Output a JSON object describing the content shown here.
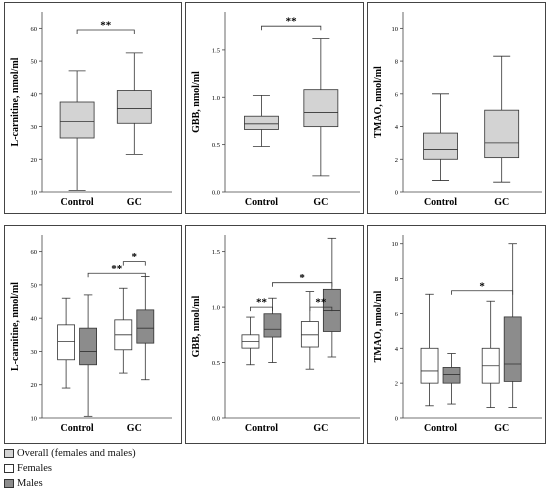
{
  "colors": {
    "overall": "#d3d3d3",
    "females": "#ffffff",
    "males": "#8c8c8c",
    "stroke": "#333333",
    "frame": "#444444"
  },
  "legend": {
    "items": [
      {
        "label": "Overall (females and males)",
        "color": "#d3d3d3"
      },
      {
        "label": "Females",
        "color": "#ffffff"
      },
      {
        "label": "Males",
        "color": "#8c8c8c"
      }
    ]
  },
  "chart_data": [
    {
      "type": "box",
      "ylabel": "L-carnitine, nmol/ml",
      "ylim": [
        10,
        65
      ],
      "yticks": [
        "10",
        "20",
        "30",
        "40",
        "50",
        "60"
      ],
      "categories": [
        "Control",
        "GC"
      ],
      "series": [
        {
          "key": "overall",
          "boxes": [
            {
              "group": "Control",
              "min": 10.5,
              "q1": 26.5,
              "median": 31.5,
              "q3": 37.5,
              "max": 47
            },
            {
              "group": "GC",
              "min": 21.5,
              "q1": 31,
              "median": 35.5,
              "q3": 41,
              "max": 52.5
            }
          ]
        }
      ],
      "annotations": [
        {
          "text": "**",
          "from": [
            "Control",
            "overall"
          ],
          "to": [
            "GC",
            "overall"
          ],
          "y": 59.5
        }
      ]
    },
    {
      "type": "box",
      "ylabel": "GBB, nmol/ml",
      "ylim": [
        0,
        1.9
      ],
      "yticks": [
        "0.0",
        "0.5",
        "1.0",
        "1.5"
      ],
      "categories": [
        "Control",
        "GC"
      ],
      "series": [
        {
          "key": "overall",
          "boxes": [
            {
              "group": "Control",
              "min": 0.48,
              "q1": 0.66,
              "median": 0.72,
              "q3": 0.8,
              "max": 1.02
            },
            {
              "group": "GC",
              "min": 0.17,
              "q1": 0.69,
              "median": 0.84,
              "q3": 1.08,
              "max": 1.62
            }
          ]
        }
      ],
      "annotations": [
        {
          "text": "**",
          "from": [
            "Control",
            "overall"
          ],
          "to": [
            "GC",
            "overall"
          ],
          "y": 1.75
        }
      ]
    },
    {
      "type": "box",
      "ylabel": "TMAO, nmol/ml",
      "ylim": [
        0,
        11
      ],
      "yticks": [
        "0",
        "2",
        "4",
        "6",
        "8",
        "10"
      ],
      "categories": [
        "Control",
        "GC"
      ],
      "series": [
        {
          "key": "overall",
          "boxes": [
            {
              "group": "Control",
              "min": 0.7,
              "q1": 2,
              "median": 2.6,
              "q3": 3.6,
              "max": 6
            },
            {
              "group": "GC",
              "min": 0.6,
              "q1": 2.1,
              "median": 3,
              "q3": 5,
              "max": 8.3
            }
          ]
        }
      ],
      "annotations": []
    },
    {
      "type": "box",
      "ylabel": "L-carnitine, nmol/ml",
      "ylim": [
        10,
        65
      ],
      "yticks": [
        "10",
        "20",
        "30",
        "40",
        "50",
        "60"
      ],
      "categories": [
        "Control",
        "GC"
      ],
      "series": [
        {
          "key": "females",
          "boxes": [
            {
              "group": "Control",
              "min": 19,
              "q1": 27.5,
              "median": 33,
              "q3": 38,
              "max": 46
            },
            {
              "group": "GC",
              "min": 23.5,
              "q1": 30.5,
              "median": 35,
              "q3": 39.5,
              "max": 49
            }
          ]
        },
        {
          "key": "males",
          "boxes": [
            {
              "group": "Control",
              "min": 10.5,
              "q1": 26,
              "median": 30,
              "q3": 37,
              "max": 47
            },
            {
              "group": "GC",
              "min": 21.5,
              "q1": 32.5,
              "median": 37,
              "q3": 42.5,
              "max": 52.5
            }
          ]
        }
      ],
      "annotations": [
        {
          "text": "*",
          "from": [
            "GC",
            "females"
          ],
          "to": [
            "GC",
            "males"
          ],
          "y": 57
        },
        {
          "text": "**",
          "from": [
            "Control",
            "males"
          ],
          "to": [
            "GC",
            "males"
          ],
          "y": 53.5
        }
      ]
    },
    {
      "type": "box",
      "ylabel": "GBB, nmol/ml",
      "ylim": [
        0,
        1.65
      ],
      "yticks": [
        "0.0",
        "0.5",
        "1.0",
        "1.5"
      ],
      "categories": [
        "Control",
        "GC"
      ],
      "series": [
        {
          "key": "females",
          "boxes": [
            {
              "group": "Control",
              "min": 0.48,
              "q1": 0.63,
              "median": 0.69,
              "q3": 0.75,
              "max": 0.91
            },
            {
              "group": "GC",
              "min": 0.44,
              "q1": 0.64,
              "median": 0.75,
              "q3": 0.87,
              "max": 1.14
            }
          ]
        },
        {
          "key": "males",
          "boxes": [
            {
              "group": "Control",
              "min": 0.5,
              "q1": 0.73,
              "median": 0.8,
              "q3": 0.94,
              "max": 1.08
            },
            {
              "group": "GC",
              "min": 0.55,
              "q1": 0.78,
              "median": 0.97,
              "q3": 1.16,
              "max": 1.62
            }
          ]
        }
      ],
      "annotations": [
        {
          "text": "**",
          "from": [
            "Control",
            "females"
          ],
          "to": [
            "Control",
            "males"
          ],
          "y": 1.0
        },
        {
          "text": "**",
          "from": [
            "GC",
            "females"
          ],
          "to": [
            "GC",
            "males"
          ],
          "y": 1.0
        },
        {
          "text": "*",
          "from": [
            "Control",
            "males"
          ],
          "to": [
            "GC",
            "males"
          ],
          "y": 1.22
        }
      ]
    },
    {
      "type": "box",
      "ylabel": "TMAO, nmol/ml",
      "ylim": [
        0,
        10.5
      ],
      "yticks": [
        "0",
        "2",
        "4",
        "6",
        "8",
        "10"
      ],
      "categories": [
        "Control",
        "GC"
      ],
      "series": [
        {
          "key": "females",
          "boxes": [
            {
              "group": "Control",
              "min": 0.7,
              "q1": 2,
              "median": 2.7,
              "q3": 4,
              "max": 7.1
            },
            {
              "group": "GC",
              "min": 0.6,
              "q1": 2,
              "median": 3,
              "q3": 4,
              "max": 6.7
            }
          ]
        },
        {
          "key": "males",
          "boxes": [
            {
              "group": "Control",
              "min": 0.8,
              "q1": 2,
              "median": 2.5,
              "q3": 2.9,
              "max": 3.7
            },
            {
              "group": "GC",
              "min": 0.6,
              "q1": 2.1,
              "median": 3.1,
              "q3": 5.8,
              "max": 10
            }
          ]
        }
      ],
      "annotations": [
        {
          "text": "*",
          "from": [
            "Control",
            "males"
          ],
          "to": [
            "GC",
            "males"
          ],
          "y": 7.3
        }
      ]
    }
  ]
}
